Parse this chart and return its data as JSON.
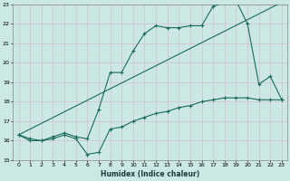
{
  "xlabel": "Humidex (Indice chaleur)",
  "xlim": [
    -0.5,
    23.5
  ],
  "ylim": [
    15,
    23
  ],
  "xticks": [
    0,
    1,
    2,
    3,
    4,
    5,
    6,
    7,
    8,
    9,
    10,
    11,
    12,
    13,
    14,
    15,
    16,
    17,
    18,
    19,
    20,
    21,
    22,
    23
  ],
  "yticks": [
    15,
    16,
    17,
    18,
    19,
    20,
    21,
    22,
    23
  ],
  "bg_color": "#cce8e4",
  "grid_color": "#d4bfcf",
  "line_color": "#1a6b5e",
  "line1_x": [
    0,
    1,
    2,
    3,
    4,
    5,
    6,
    7,
    8,
    9,
    10,
    11,
    12,
    13,
    14,
    15,
    16,
    17,
    18,
    19,
    20,
    21,
    22,
    23
  ],
  "line1_y": [
    16.3,
    16.0,
    16.0,
    16.1,
    16.3,
    16.1,
    15.3,
    15.4,
    16.6,
    16.7,
    17.0,
    17.2,
    17.4,
    17.5,
    17.7,
    17.8,
    18.0,
    18.1,
    18.2,
    18.2,
    18.2,
    18.1,
    18.1,
    18.1
  ],
  "line2_x": [
    0,
    1,
    2,
    3,
    4,
    5,
    6,
    7,
    8,
    9,
    10,
    11,
    12,
    13,
    14,
    15,
    16,
    17,
    18,
    19,
    20,
    21,
    22,
    23
  ],
  "line2_y": [
    16.3,
    16.1,
    16.0,
    16.2,
    16.4,
    16.2,
    16.1,
    17.6,
    19.5,
    19.5,
    20.6,
    21.5,
    21.9,
    21.8,
    21.8,
    21.9,
    21.9,
    22.9,
    23.1,
    23.2,
    22.0,
    18.9,
    19.3,
    18.1
  ],
  "line3_x": [
    0,
    23
  ],
  "line3_y": [
    16.3,
    23.1
  ]
}
